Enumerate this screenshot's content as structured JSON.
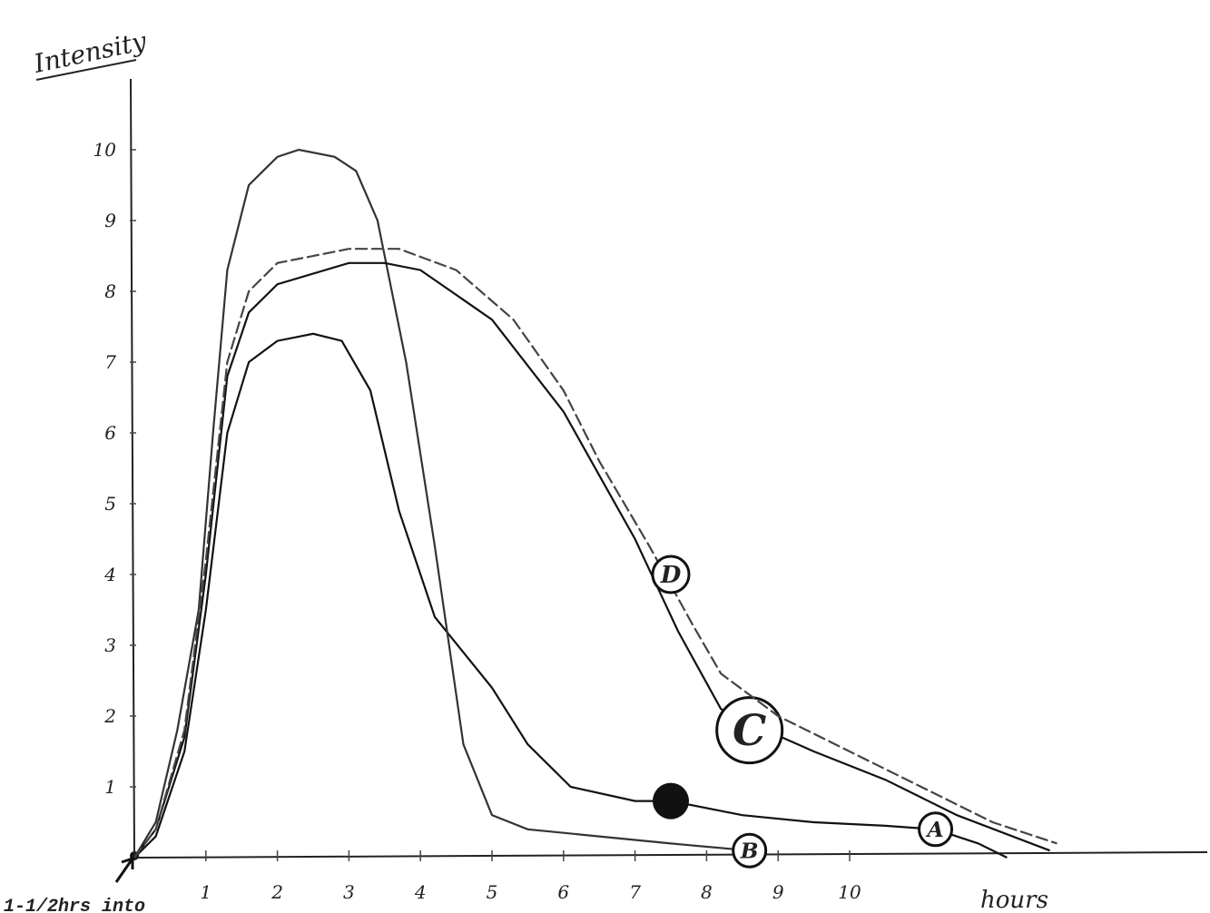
{
  "chart_data": {
    "type": "line",
    "title": "Intensity",
    "x_label": "hours",
    "annotation": "1-1/2hrs into",
    "xlim": [
      0,
      15
    ],
    "ylim": [
      0,
      11
    ],
    "xticks": [
      1,
      2,
      3,
      4,
      5,
      6,
      7,
      8,
      9,
      10
    ],
    "yticks": [
      1,
      2,
      3,
      4,
      5,
      6,
      7,
      8,
      9,
      10
    ],
    "grid": false,
    "series": [
      {
        "name": "A",
        "color": "#111111",
        "x": [
          0,
          0.3,
          0.7,
          1,
          1.3,
          1.6,
          2,
          2.5,
          2.9,
          3.3,
          3.7,
          4.2,
          5,
          5.5,
          6.1,
          7,
          7.5,
          8.5,
          9.5,
          10.5,
          11.2,
          11.8,
          12.2
        ],
        "values": [
          0,
          0.3,
          1.5,
          3.5,
          6,
          7,
          7.3,
          7.4,
          7.3,
          6.6,
          4.9,
          3.4,
          2.4,
          1.6,
          1.0,
          0.8,
          0.8,
          0.6,
          0.5,
          0.45,
          0.4,
          0.2,
          0
        ]
      },
      {
        "name": "B",
        "color": "#333333",
        "x": [
          0,
          0.3,
          0.6,
          0.9,
          1.1,
          1.3,
          1.6,
          2,
          2.3,
          2.8,
          3.1,
          3.4,
          3.8,
          4.2,
          4.6,
          5,
          5.5,
          6.5,
          7.5,
          8.6
        ],
        "values": [
          0,
          0.5,
          1.8,
          3.5,
          6,
          8.3,
          9.5,
          9.9,
          10,
          9.9,
          9.7,
          9.0,
          7,
          4.4,
          1.6,
          0.6,
          0.4,
          0.3,
          0.2,
          0.1
        ]
      },
      {
        "name": "C",
        "color": "#111111",
        "x": [
          0,
          0.3,
          0.7,
          1,
          1.3,
          1.6,
          2,
          3,
          3.5,
          4,
          5,
          6,
          6.5,
          7,
          7.6,
          8.2,
          8.6,
          9.5,
          10.5,
          11.5,
          12.8
        ],
        "values": [
          0,
          0.4,
          1.7,
          4,
          6.8,
          7.7,
          8.1,
          8.4,
          8.4,
          8.3,
          7.6,
          6.3,
          5.4,
          4.5,
          3.2,
          2.1,
          1.9,
          1.5,
          1.1,
          0.6,
          0.1
        ]
      },
      {
        "name": "D",
        "color": "#444444",
        "x": [
          0,
          0.3,
          0.7,
          1,
          1.3,
          1.6,
          2,
          3,
          3.7,
          4.5,
          5.3,
          6,
          6.5,
          7.2,
          7.8,
          8.2,
          9,
          10,
          11,
          12,
          12.9
        ],
        "values": [
          0,
          0.4,
          1.8,
          4.2,
          7,
          8,
          8.4,
          8.6,
          8.6,
          8.3,
          7.6,
          6.6,
          5.6,
          4.4,
          3.3,
          2.6,
          2.0,
          1.5,
          1.0,
          0.5,
          0.2
        ]
      }
    ]
  }
}
